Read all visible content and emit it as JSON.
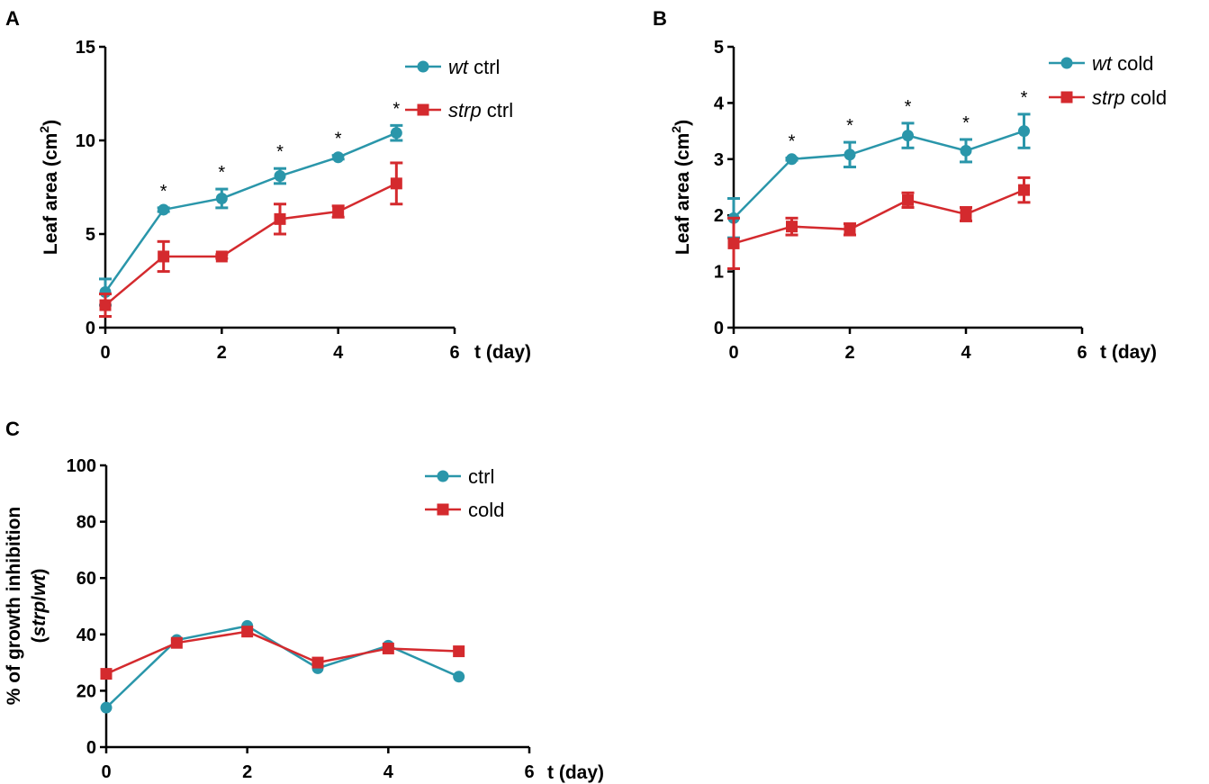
{
  "colors": {
    "wt": "#2a96aa",
    "strp": "#d42a2e"
  },
  "chart_data": [
    {
      "id": "A",
      "panel_label": "A",
      "type": "line",
      "title": "",
      "xlabel": "t (day)",
      "ylabel_parts": [
        "Leaf area (cm",
        "2",
        ")"
      ],
      "xlim": [
        0,
        6
      ],
      "ylim": [
        0,
        15
      ],
      "xticks": [
        "0",
        "2",
        "4",
        "6"
      ],
      "yticks": [
        "0",
        "5",
        "10",
        "15"
      ],
      "x": [
        0,
        1,
        2,
        3,
        4,
        5
      ],
      "significance_marker": "*",
      "significance_x": [
        1,
        2,
        3,
        4,
        5
      ],
      "legend_position": "top-right",
      "series": [
        {
          "key": "wt",
          "name_italic": "wt",
          "name_rest": " ctrl",
          "marker": "circle",
          "values": [
            1.9,
            6.3,
            6.9,
            8.1,
            9.1,
            10.4
          ],
          "errors": [
            0.7,
            0.1,
            0.5,
            0.4,
            0.1,
            0.4
          ]
        },
        {
          "key": "strp",
          "name_italic": "strp",
          "name_rest": " ctrl",
          "marker": "square",
          "values": [
            1.2,
            3.8,
            3.8,
            5.8,
            6.2,
            7.7
          ],
          "errors": [
            0.6,
            0.8,
            0.1,
            0.8,
            0.3,
            1.1
          ]
        }
      ]
    },
    {
      "id": "B",
      "panel_label": "B",
      "type": "line",
      "title": "",
      "xlabel": "t (day)",
      "ylabel_parts": [
        "Leaf area (cm",
        "2",
        ")"
      ],
      "xlim": [
        0,
        6
      ],
      "ylim": [
        0,
        5
      ],
      "xticks": [
        "0",
        "2",
        "4",
        "6"
      ],
      "yticks": [
        "0",
        "1",
        "2",
        "3",
        "4",
        "5"
      ],
      "x": [
        0,
        1,
        2,
        3,
        4,
        5
      ],
      "significance_marker": "*",
      "significance_x": [
        1,
        2,
        3,
        4,
        5
      ],
      "legend_position": "top-right",
      "series": [
        {
          "key": "wt",
          "name_italic": "wt",
          "name_rest": " cold",
          "marker": "circle",
          "values": [
            1.95,
            3.0,
            3.08,
            3.42,
            3.15,
            3.5
          ],
          "errors": [
            0.35,
            0.02,
            0.22,
            0.22,
            0.2,
            0.3
          ]
        },
        {
          "key": "strp",
          "name_italic": "strp",
          "name_rest": " cold",
          "marker": "square",
          "values": [
            1.5,
            1.8,
            1.75,
            2.27,
            2.02,
            2.45
          ],
          "errors": [
            0.45,
            0.15,
            0.1,
            0.13,
            0.12,
            0.22
          ]
        }
      ]
    },
    {
      "id": "C",
      "panel_label": "C",
      "type": "line",
      "title": "",
      "xlabel": "t (day)",
      "ylabel_line1": "% of growth inhibition",
      "ylabel_line2_italic_a": "strp",
      "ylabel_line2_sep": "/",
      "ylabel_line2_italic_b": "wt",
      "ylabel_line2_open": "(",
      "ylabel_line2_close": ")",
      "xlim": [
        0,
        6
      ],
      "ylim": [
        0,
        100
      ],
      "xticks": [
        "0",
        "2",
        "4",
        "6"
      ],
      "yticks": [
        "0",
        "20",
        "40",
        "60",
        "80",
        "100"
      ],
      "x": [
        0,
        1,
        2,
        3,
        4,
        5
      ],
      "legend_position": "top-right",
      "series": [
        {
          "key": "wt",
          "name": "ctrl",
          "marker": "circle",
          "values": [
            14,
            38,
            43,
            28,
            36,
            25
          ]
        },
        {
          "key": "strp",
          "name": "cold",
          "marker": "square",
          "values": [
            26,
            37,
            41,
            30,
            35,
            34
          ]
        }
      ]
    }
  ]
}
